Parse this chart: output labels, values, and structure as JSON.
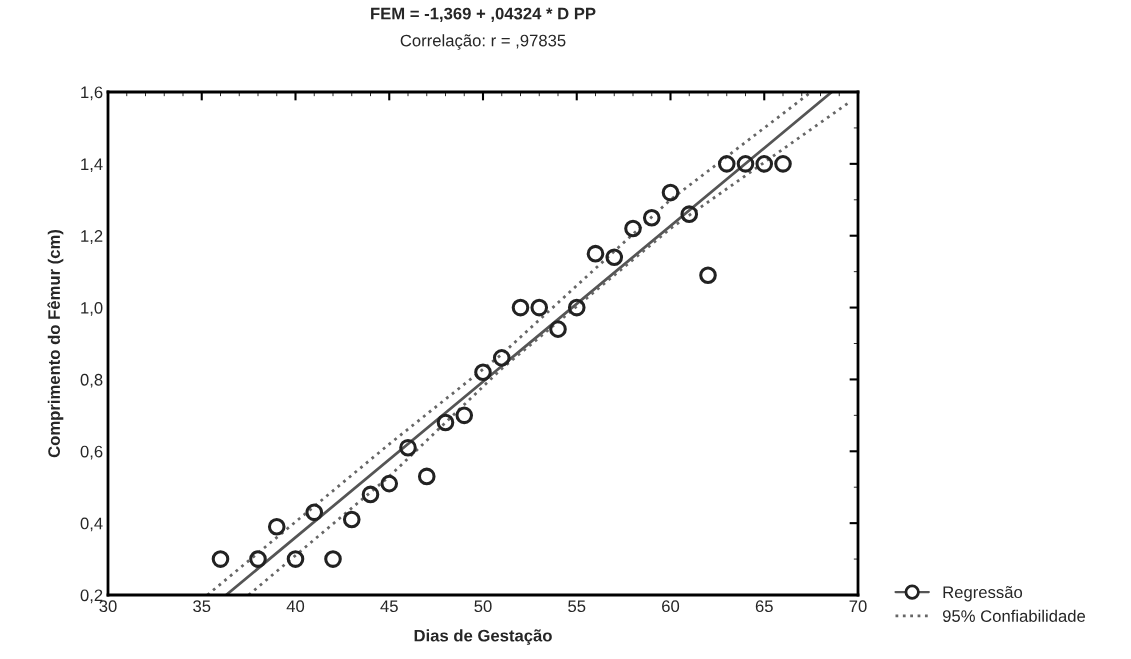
{
  "chart_data": {
    "type": "scatter",
    "title": "FEM = -1,369 + ,04324 * D PP",
    "subtitle": "Correlação: r = ,97835",
    "xlabel": "Dias de Gestação",
    "ylabel": "Comprimento do Fêmur (cm)",
    "x": [
      36,
      38,
      39,
      40,
      41,
      42,
      43,
      44,
      45,
      46,
      47,
      48,
      49,
      50,
      51,
      52,
      53,
      54,
      55,
      56,
      57,
      58,
      59,
      60,
      61,
      62,
      63,
      64,
      65,
      66
    ],
    "series": [
      {
        "name": "Regressão",
        "color": "#222222",
        "marker": "circle",
        "values": [
          0.3,
          0.3,
          0.39,
          0.3,
          0.43,
          0.3,
          0.41,
          0.48,
          0.51,
          0.61,
          0.53,
          0.68,
          0.7,
          0.82,
          0.86,
          1.0,
          1.0,
          0.94,
          1.0,
          1.15,
          1.14,
          1.22,
          1.25,
          1.32,
          1.26,
          1.09,
          1.4,
          1.4,
          1.4,
          1.4
        ]
      },
      {
        "type": "line",
        "color": "#555555",
        "line_style": "solid",
        "x": [
          36.3,
          68.6
        ],
        "values": [
          0.2,
          1.6
        ]
      },
      {
        "name": "95% Confiabilidade",
        "type": "line",
        "color": "#666666",
        "line_style": "dotted",
        "x": [
          35.3,
          45,
          51,
          60,
          67.5
        ],
        "values": [
          0.2,
          0.62,
          0.87,
          1.3,
          1.6
        ]
      },
      {
        "type": "line",
        "color": "#666666",
        "line_style": "dotted",
        "x": [
          37.5,
          45,
          51,
          60,
          69.5
        ],
        "values": [
          0.2,
          0.53,
          0.83,
          1.22,
          1.57
        ]
      }
    ],
    "xlim": [
      30,
      70
    ],
    "xticks": [
      30,
      35,
      40,
      45,
      50,
      55,
      60,
      65,
      70
    ],
    "ylim": [
      0.2,
      1.6
    ],
    "yticks": [
      {
        "value": 0.2,
        "label": "0,2"
      },
      {
        "value": 0.4,
        "label": "0,4"
      },
      {
        "value": 0.6,
        "label": "0,6"
      },
      {
        "value": 0.8,
        "label": "0,8"
      },
      {
        "value": 1.0,
        "label": "1,0"
      },
      {
        "value": 1.2,
        "label": "1,2"
      },
      {
        "value": 1.4,
        "label": "1,4"
      },
      {
        "value": 1.6,
        "label": "1,6"
      }
    ],
    "grid": false,
    "legend": "right"
  }
}
